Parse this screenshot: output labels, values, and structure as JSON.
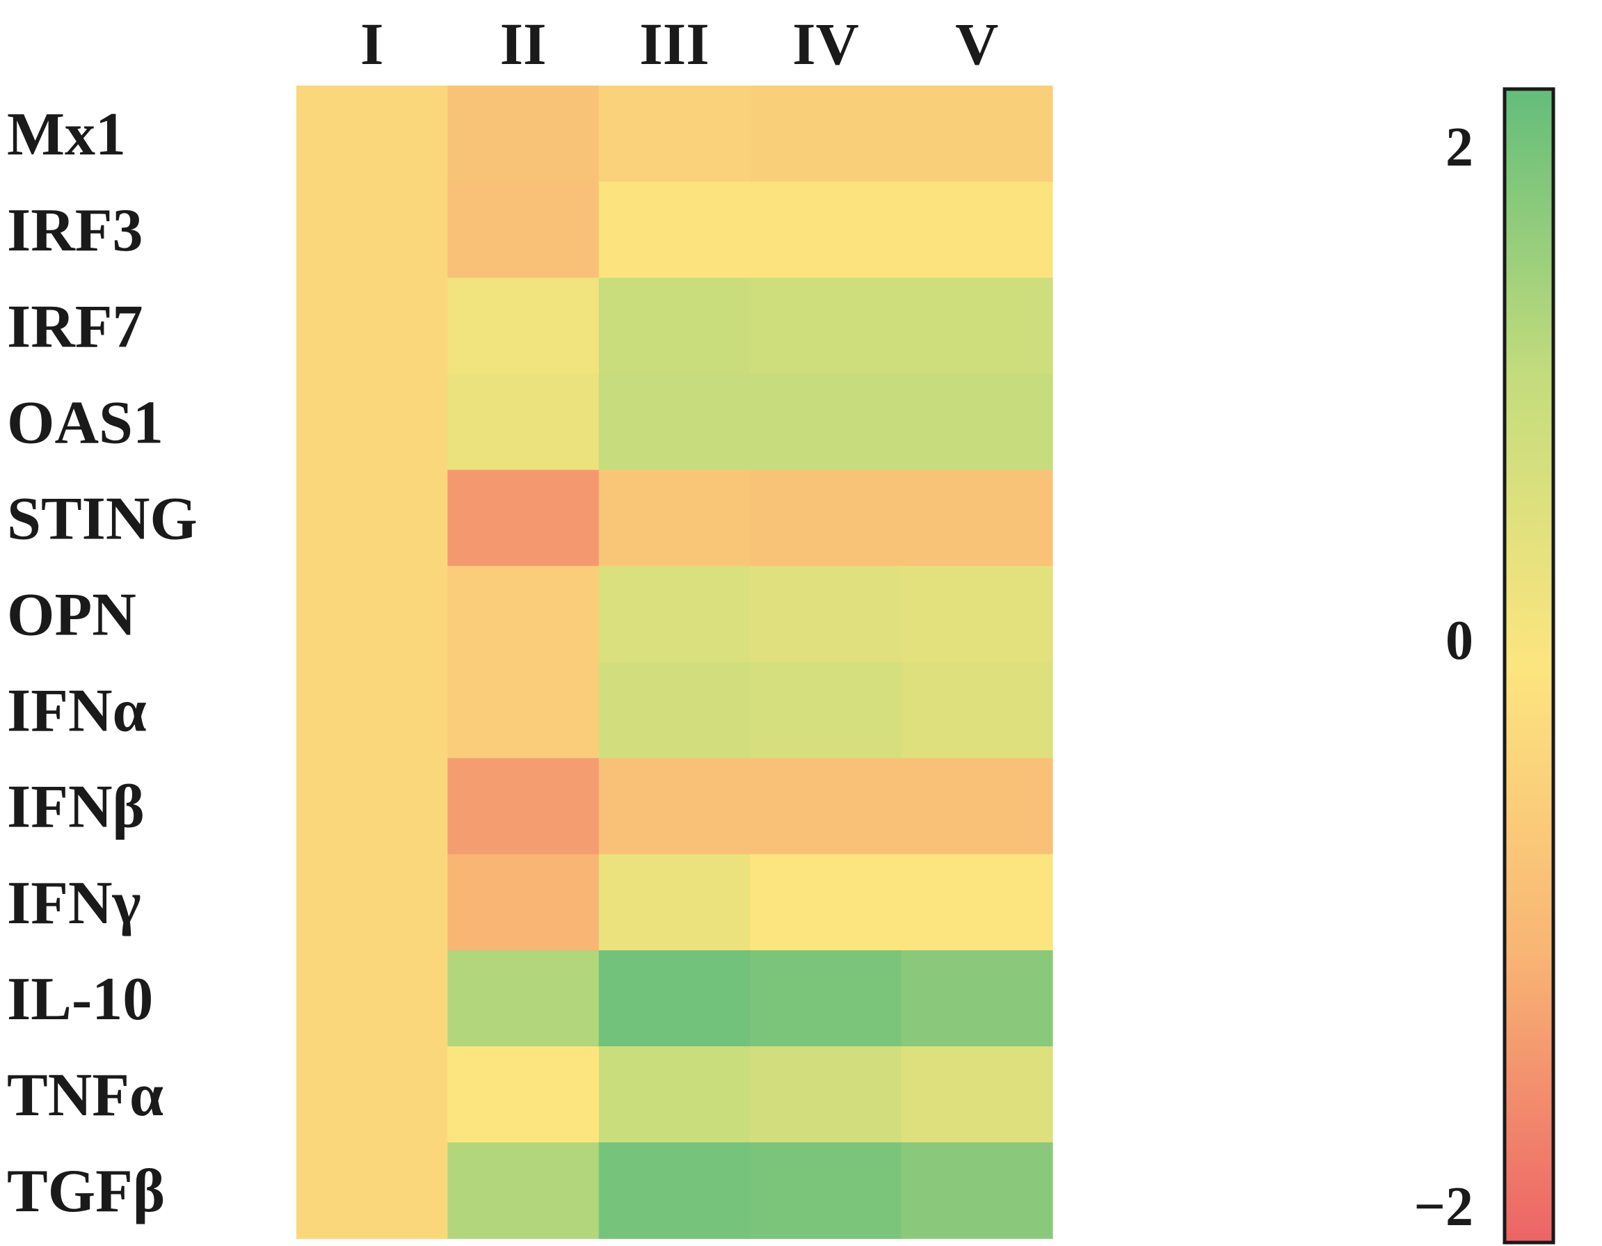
{
  "chart_data": {
    "type": "heatmap",
    "columns": [
      "I",
      "II",
      "III",
      "IV",
      "V"
    ],
    "rows": [
      "Mx1",
      "IRF3",
      "IRF7",
      "OAS1",
      "STING",
      "OPN",
      "IFNα",
      "IFNβ",
      "IFNγ",
      "IL-10",
      "TNFα",
      "TGFβ"
    ],
    "values": [
      [
        -0.3,
        -0.7,
        -0.4,
        -0.45,
        -0.45
      ],
      [
        -0.3,
        -0.75,
        -0.05,
        -0.05,
        -0.05
      ],
      [
        -0.3,
        0.2,
        0.9,
        0.8,
        0.8
      ],
      [
        -0.3,
        0.3,
        0.95,
        0.95,
        0.95
      ],
      [
        -0.3,
        -1.35,
        -0.65,
        -0.7,
        -0.7
      ],
      [
        -0.3,
        -0.5,
        0.6,
        0.5,
        0.45
      ],
      [
        -0.3,
        -0.5,
        0.75,
        0.7,
        0.55
      ],
      [
        -0.3,
        -1.3,
        -0.75,
        -0.75,
        -0.75
      ],
      [
        -0.3,
        -1.0,
        0.3,
        0.0,
        0.0
      ],
      [
        -0.3,
        1.2,
        1.85,
        1.75,
        1.6
      ],
      [
        -0.3,
        0.0,
        0.9,
        0.75,
        0.55
      ],
      [
        -0.3,
        1.2,
        1.8,
        1.75,
        1.6
      ]
    ],
    "colorbar": {
      "min": -2,
      "max": 2,
      "ticks": [
        {
          "value": 2,
          "label": "2"
        },
        {
          "value": 0,
          "label": "0"
        },
        {
          "value": -2,
          "label": "−2"
        }
      ],
      "colors": {
        "low": "#ec6466",
        "mid_low": "#f8b574",
        "mid": "#fce57f",
        "mid_high": "#c4dc7c",
        "high": "#63bd7b"
      }
    },
    "title": "",
    "xlabel": "",
    "ylabel": "",
    "grid": false
  }
}
